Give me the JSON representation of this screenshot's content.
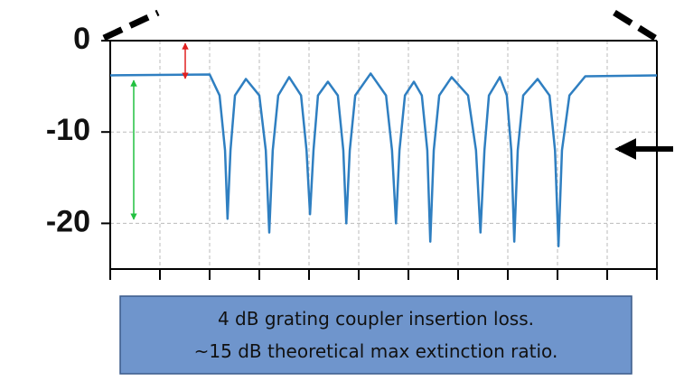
{
  "chart_data": {
    "type": "line",
    "x": [
      0,
      2.0,
      2.2,
      2.31,
      2.36,
      2.42,
      2.51,
      2.73,
      3.0,
      3.13,
      3.2,
      3.27,
      3.38,
      3.6,
      3.84,
      3.95,
      4.02,
      4.09,
      4.18,
      4.38,
      4.58,
      4.69,
      4.75,
      4.82,
      4.93,
      5.24,
      5.55,
      5.67,
      5.75,
      5.82,
      5.93,
      6.11,
      6.27,
      6.38,
      6.44,
      6.51,
      6.62,
      6.87,
      7.2,
      7.36,
      7.45,
      7.53,
      7.62,
      7.84,
      7.98,
      8.07,
      8.13,
      8.2,
      8.31,
      8.6,
      8.84,
      8.95,
      9.02,
      9.09,
      9.24,
      9.56,
      11.0
    ],
    "series": [
      {
        "color": "#2f7fc1",
        "values": [
          -3.8,
          -3.7,
          -6,
          -12,
          -19.5,
          -12,
          -6,
          -4.2,
          -6,
          -12,
          -21,
          -12,
          -6,
          -4,
          -6,
          -12,
          -19,
          -12,
          -6,
          -4.5,
          -6,
          -12,
          -20,
          -12,
          -6,
          -3.6,
          -6,
          -12,
          -20,
          -12,
          -6,
          -4.5,
          -6,
          -12,
          -22,
          -12,
          -6,
          -4,
          -6,
          -12,
          -21,
          -12,
          -6,
          -4,
          -6,
          -12,
          -22,
          -12,
          -6,
          -4.2,
          -6,
          -12,
          -22.5,
          -12,
          -6,
          -3.9,
          -3.8
        ]
      }
    ],
    "xlim": [
      0,
      11
    ],
    "xticks": [
      0,
      1,
      2,
      3,
      4,
      5,
      6,
      7,
      8,
      9,
      10,
      11
    ],
    "ylim": [
      -25,
      0
    ],
    "yticks": [
      0,
      -10,
      -20
    ],
    "grid": true,
    "annotations": [
      "4 dB grating coupler insertion loss.",
      "~15 dB theoretical max extinction ratio."
    ]
  }
}
